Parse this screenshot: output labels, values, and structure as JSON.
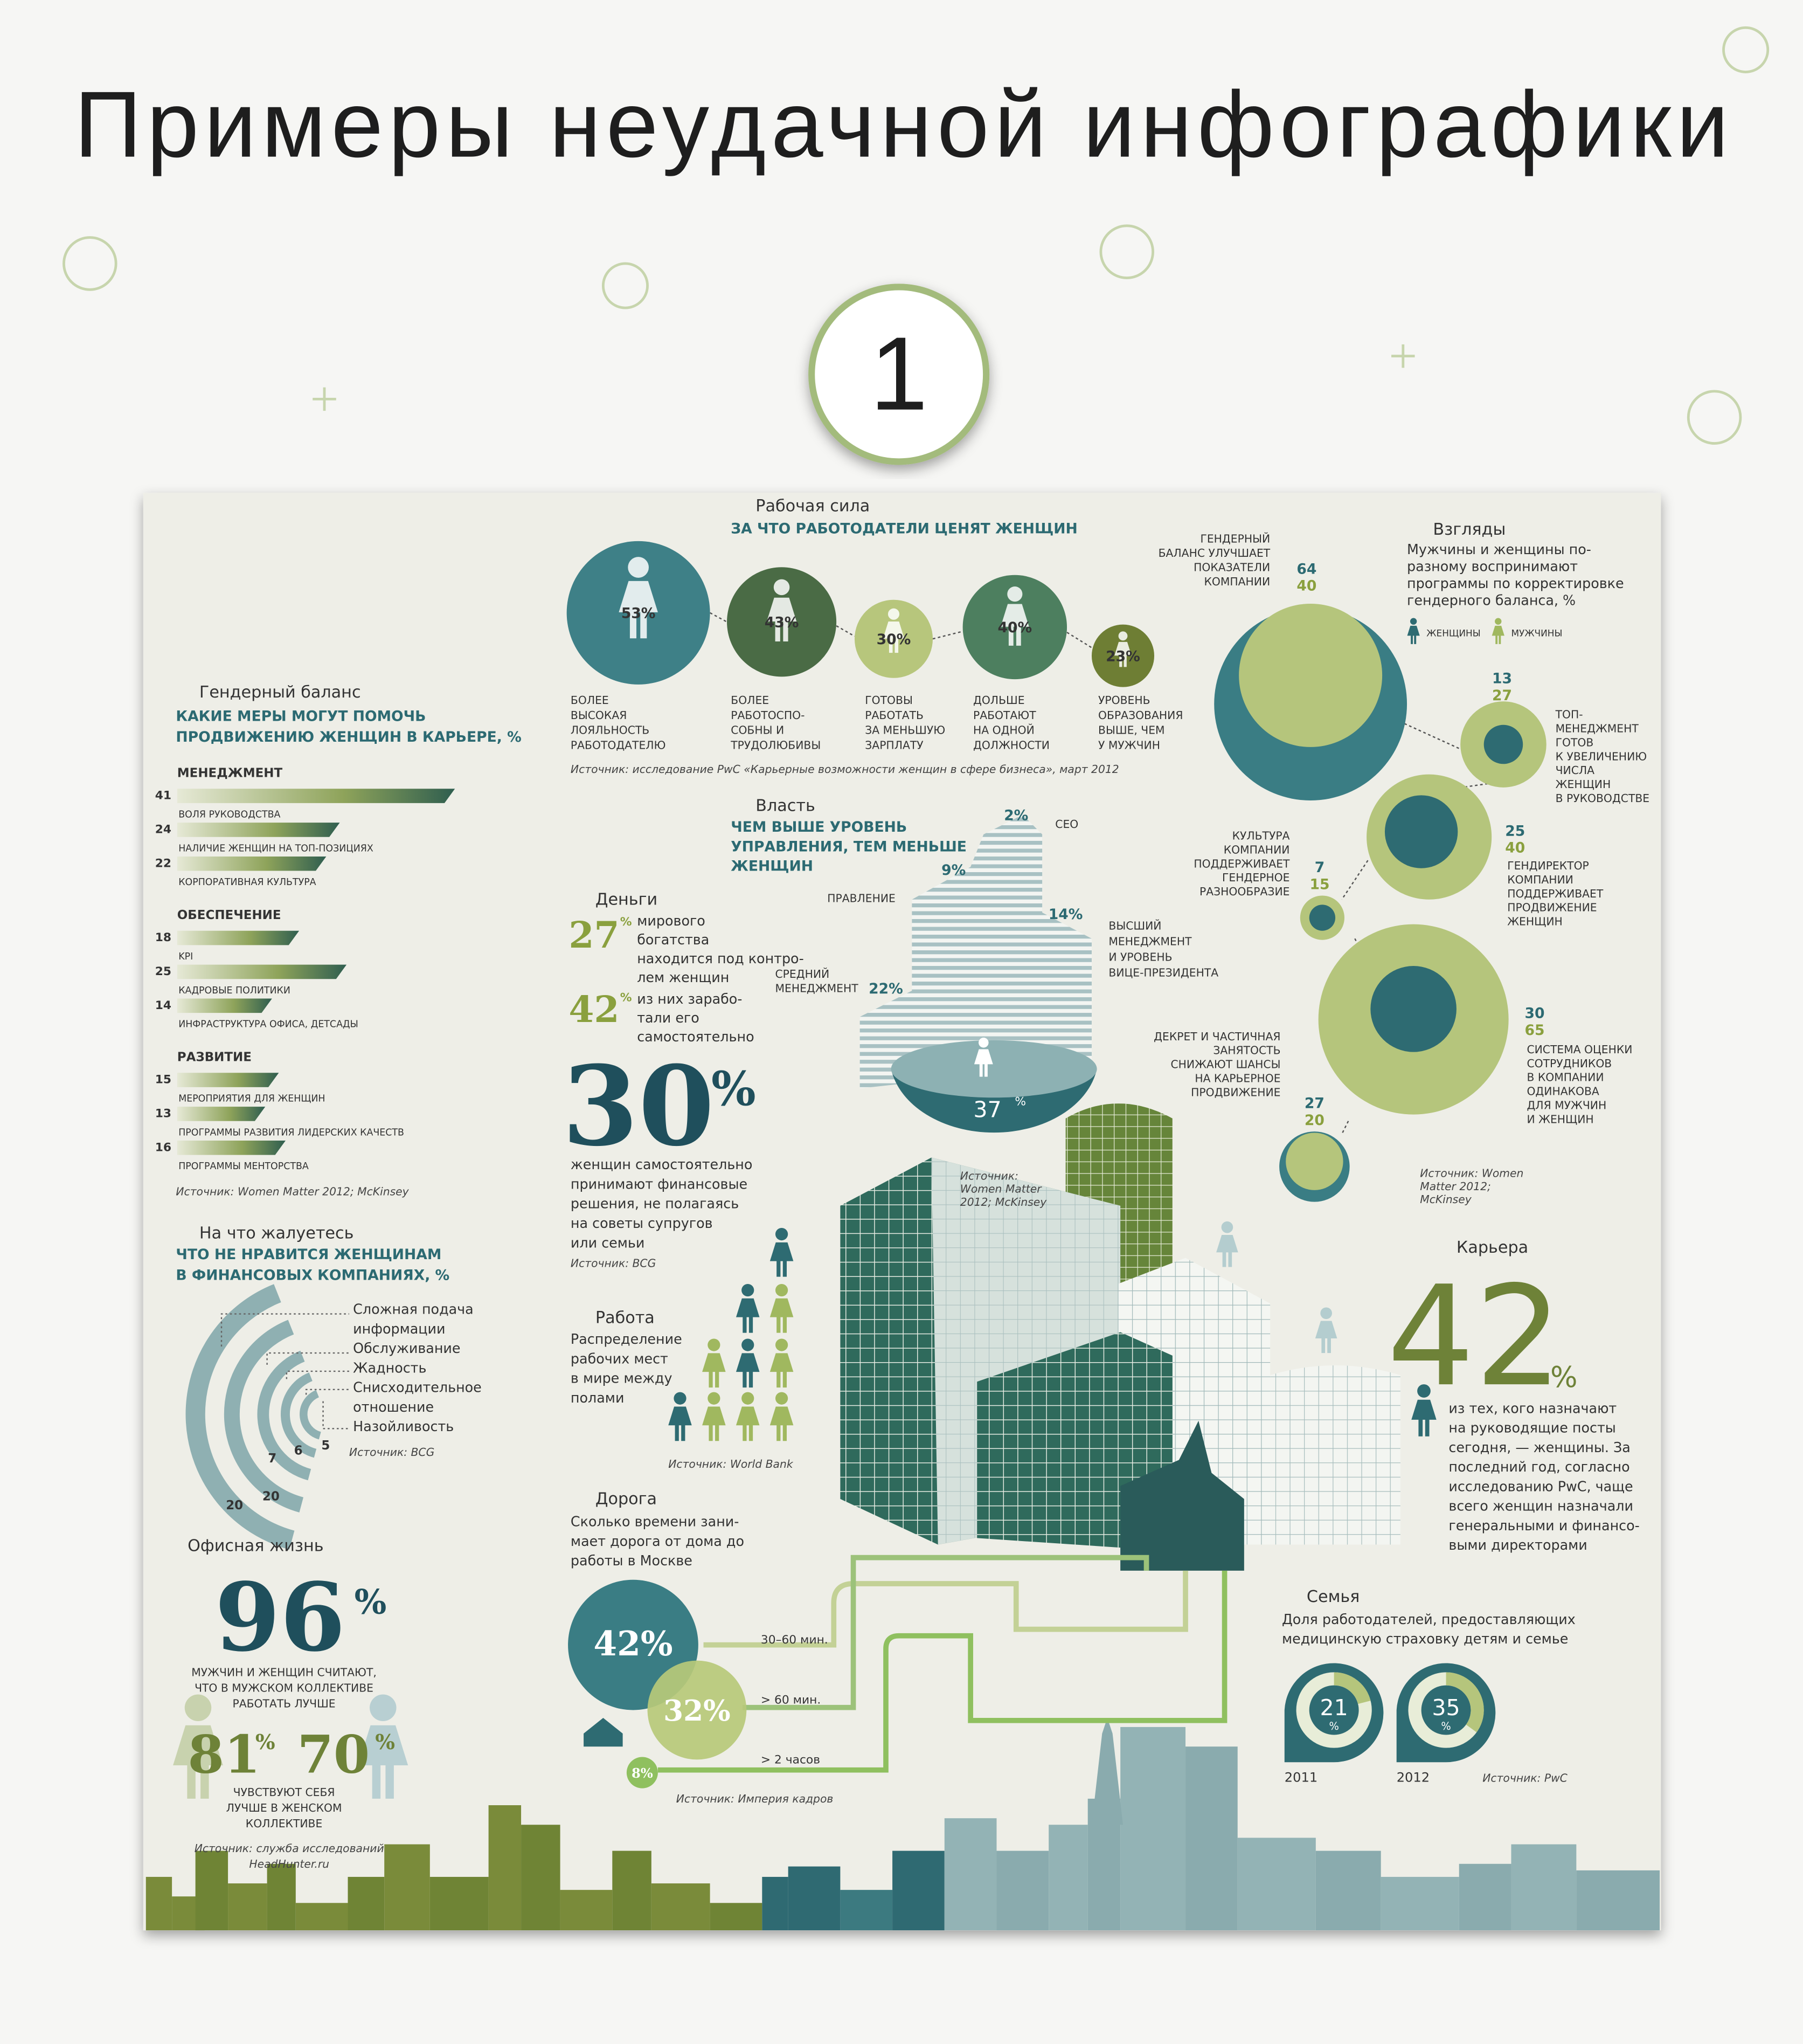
{
  "title": "Примеры неудачной инфографики",
  "badge": "1",
  "workforce": {
    "heading": "Рабочая сила",
    "subheading": "ЗА ЧТО РАБОТОДАТЕЛИ ЦЕНЯТ ЖЕНЩИН",
    "items": [
      {
        "value": "53%",
        "label": [
          "БОЛЕЕ",
          "ВЫСОКАЯ",
          "ЛОЯЛЬНОСТЬ",
          "РАБОТОДАТЕЛЮ"
        ]
      },
      {
        "value": "43%",
        "label": [
          "БОЛЕЕ",
          "РАБОТОСПО-",
          "СОБНЫ И",
          "ТРУДОЛЮБИВЫ"
        ]
      },
      {
        "value": "30%",
        "label": [
          "ГОТОВЫ",
          "РАБОТАТЬ",
          "ЗА МЕНЬШУЮ",
          "ЗАРПЛАТУ"
        ]
      },
      {
        "value": "40%",
        "label": [
          "ДОЛЬШЕ",
          "РАБОТАЮТ",
          "НА ОДНОЙ",
          "ДОЛЖНОСТИ"
        ]
      },
      {
        "value": "23%",
        "label": [
          "УРОВЕНЬ",
          "ОБРАЗОВАНИЯ",
          "ВЫШЕ, ЧЕМ",
          "У МУЖЧИН"
        ]
      }
    ],
    "source": "Источник: исследование PwC «Карьерные возможности женщин в сфере бизнеса», март 2012"
  },
  "gender_balance": {
    "heading": "Гендерный баланс",
    "subheading": [
      "КАКИЕ МЕРЫ МОГУТ ПОМОЧЬ",
      "ПРОДВИЖЕНИЮ ЖЕНЩИН В КАРЬЕРЕ, %"
    ],
    "groups": [
      {
        "name": "МЕНЕДЖМЕНТ",
        "items": [
          {
            "value": 41,
            "label": "ВОЛЯ РУКОВОДСТВА"
          },
          {
            "value": 24,
            "label": "НАЛИЧИЕ ЖЕНЩИН НА ТОП-ПОЗИЦИЯХ"
          },
          {
            "value": 22,
            "label": "КОРПОРАТИВНАЯ КУЛЬТУРА"
          }
        ]
      },
      {
        "name": "ОБЕСПЕЧЕНИЕ",
        "items": [
          {
            "value": 18,
            "label": "KPI"
          },
          {
            "value": 25,
            "label": "КАДРОВЫЕ ПОЛИТИКИ"
          },
          {
            "value": 14,
            "label": "ИНФРАСТРУКТУРА ОФИСА, ДЕТСАДЫ"
          }
        ]
      },
      {
        "name": "РАЗВИТИЕ",
        "items": [
          {
            "value": 15,
            "label": "МЕРОПРИЯТИЯ ДЛЯ ЖЕНЩИН"
          },
          {
            "value": 13,
            "label": "ПРОГРАММЫ РАЗВИТИЯ ЛИДЕРСКИХ КАЧЕСТВ"
          },
          {
            "value": 16,
            "label": "ПРОГРАММЫ МЕНТОРСТВА"
          }
        ]
      }
    ],
    "source": "Источник: Women Matter 2012; McKinsey"
  },
  "complaints": {
    "heading": "На что жалуетесь",
    "subheading": [
      "ЧТО НЕ НРАВИТСЯ ЖЕНЩИНАМ",
      "В ФИНАНСОВЫХ КОМПАНИЯХ, %"
    ],
    "list": [
      "Сложная подача",
      "информации",
      "Обслуживание",
      "Жадность",
      "Снисходительное",
      "отношение",
      "Назойливость"
    ],
    "values": [
      "20",
      "20",
      "7",
      "6",
      "5"
    ],
    "source": "Источник: BCG"
  },
  "office": {
    "heading": "Офисная жизнь",
    "main": "96",
    "main_unit": "%",
    "main_text": [
      "МУЖЧИН И ЖЕНЩИН СЧИТАЮТ,",
      "ЧТО В МУЖСКОМ КОЛЛЕКТИВЕ",
      "РАБОТАТЬ ЛУЧШЕ"
    ],
    "women": "81",
    "women_unit": "%",
    "men": "70",
    "men_unit": "%",
    "second_text": [
      "ЧУВСТВУЮТ СЕБЯ",
      "ЛУЧШЕ В ЖЕНСКОМ",
      "КОЛЛЕКТИВЕ"
    ],
    "source": [
      "Источник: служба исследований",
      "HeadHunter.ru"
    ]
  },
  "power": {
    "heading": "Власть",
    "subheading": [
      "ЧЕМ ВЫШЕ УРОВЕНЬ",
      "УПРАВЛЕНИЯ, ТЕМ МЕНЬШЕ",
      "ЖЕНЩИН"
    ],
    "ceo_value": "2%",
    "ceo": "CEO",
    "board_value": "9%",
    "board": "ПРАВЛЕНИЕ",
    "top_value": "14%",
    "top": [
      "ВЫСШИЙ",
      "МЕНЕДЖМЕНТ",
      "И УРОВЕНЬ",
      "ВИЦЕ-ПРЕЗИДЕНТА"
    ],
    "middle": [
      "СРЕДНИЙ",
      "МЕНЕДЖМЕНТ"
    ],
    "middle_value": "22%",
    "base_value": "37",
    "base_unit": "%",
    "source": [
      "Источник:",
      "Women Matter",
      "2012; McKinsey"
    ]
  },
  "money": {
    "heading": "Деньги",
    "first": "27",
    "first_unit": "%",
    "first_text": [
      "мирового",
      "богатства",
      "находится под контро-",
      "лем женщин"
    ],
    "second": "42",
    "second_unit": "%",
    "second_text": [
      "из них зарабо-",
      "тали его",
      "самостоятельно"
    ],
    "main": "30",
    "main_unit": "%",
    "main_text": [
      "женщин самостоятельно",
      "принимают финансовые",
      "решения, не полагаясь",
      "на советы супругов",
      "или семьи"
    ],
    "source": "Источник: BCG"
  },
  "work": {
    "heading": "Работа",
    "text": [
      "Распределение",
      "рабочих мест",
      "в мире между",
      "полами"
    ],
    "source": "Источник: World Bank"
  },
  "road": {
    "heading": "Дорога",
    "text": [
      "Сколько времени зани-",
      "мает дорога от дома до",
      "работы в Москве"
    ],
    "items": [
      {
        "value": "42%",
        "label": "30–60 мин."
      },
      {
        "value": "32%",
        "label": "> 60 мин."
      },
      {
        "value": "8%",
        "label": "> 2 часов"
      }
    ],
    "source": "Источник: Империя кадров"
  },
  "views": {
    "heading": "Взгляды",
    "text": [
      "Мужчины и женщины по-",
      "разному воспринимают",
      "программы по корректировке",
      "гендерного баланса, %"
    ],
    "legend": [
      "ЖЕНЩИНЫ",
      "МУЖЧИНЫ"
    ],
    "items": [
      {
        "women": "64",
        "men": "40",
        "label": [
          "ГЕНДЕРНЫЙ",
          "БАЛАНС УЛУЧШАЕТ",
          "ПОКАЗАТЕЛИ",
          "КОМПАНИИ"
        ]
      },
      {
        "women": "13",
        "men": "27",
        "label": [
          "ТОП-",
          "МЕНЕДЖМЕНТ",
          "ГОТОВ",
          "К УВЕЛИЧЕНИЮ",
          "ЧИСЛА",
          "ЖЕНЩИН",
          "В РУКОВОДСТВЕ"
        ]
      },
      {
        "women": "25",
        "men": "40",
        "label": [
          "ГЕНДИРЕКТОР",
          "КОМПАНИИ",
          "ПОДДЕРЖИВАЕТ",
          "ПРОДВИЖЕНИЕ",
          "ЖЕНЩИН"
        ]
      },
      {
        "women": "7",
        "men": "15",
        "label": [
          "КУЛЬТУРА",
          "КОМПАНИИ",
          "ПОДДЕРЖИВАЕТ",
          "ГЕНДЕРНОЕ",
          "РАЗНООБРАЗИЕ"
        ]
      },
      {
        "women": "30",
        "men": "65",
        "label": [
          "СИСТЕМА ОЦЕНКИ",
          "СОТРУДНИКОВ",
          "В КОМПАНИИ",
          "ОДИНАКОВА",
          "ДЛЯ МУЖЧИН",
          "И ЖЕНЩИН"
        ]
      },
      {
        "women": "27",
        "men": "20",
        "label": [
          "ДЕКРЕТ И ЧАСТИЧНАЯ",
          "ЗАНЯТОСТЬ",
          "СНИЖАЮТ ШАНСЫ",
          "НА КАРЬЕРНОЕ",
          "ПРОДВИЖЕНИЕ"
        ]
      }
    ],
    "source": [
      "Источник: Women",
      "Matter 2012;",
      "McKinsey"
    ]
  },
  "career": {
    "heading": "Карьера",
    "value": "42",
    "unit": "%",
    "text": [
      "из тех, кого назначают",
      "на руководящие посты",
      "сегодня, — женщины. За",
      "последний год, согласно",
      "исследованию PwC, чаще",
      "всего женщин назначали",
      "генеральными и финансо-",
      "выми директорами"
    ]
  },
  "family": {
    "heading": "Семья",
    "text": [
      "Доля работодателей, предоставляющих",
      "медицинскую страховку детям и семье"
    ],
    "items": [
      {
        "value": 21,
        "unit": "%",
        "year": "2011"
      },
      {
        "value": 35,
        "unit": "%",
        "year": "2012"
      }
    ],
    "source": "Источник: PwC"
  }
}
